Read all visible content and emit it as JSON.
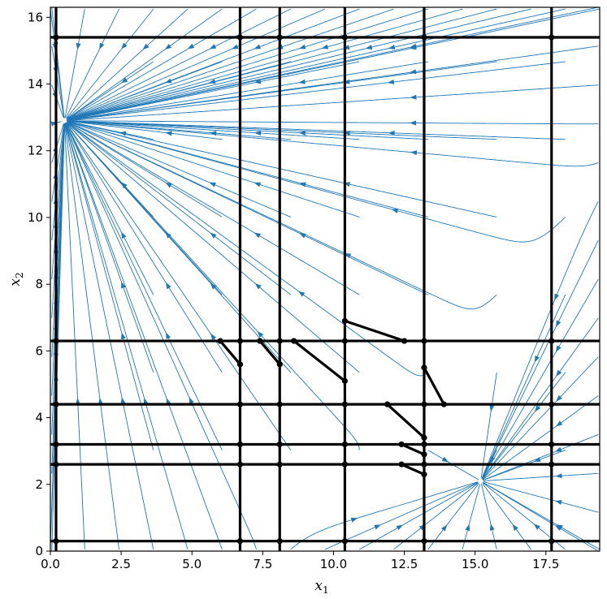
{
  "chart_data": {
    "type": "streamplot",
    "title": "",
    "xlabel": "x",
    "xlabel_sub": "1",
    "ylabel": "x",
    "ylabel_sub": "2",
    "xlim": [
      0,
      19.4
    ],
    "ylim": [
      0,
      16.3
    ],
    "x_ticks": [
      0,
      2.5,
      5,
      7.5,
      10,
      12.5,
      15,
      17.5
    ],
    "x_tick_labels": [
      "0.0",
      "2.5",
      "5.0",
      "7.5",
      "10.0",
      "12.5",
      "15.0",
      "17.5"
    ],
    "y_ticks": [
      0,
      2,
      4,
      6,
      8,
      10,
      12,
      14,
      16
    ],
    "y_tick_labels": [
      "0",
      "2",
      "4",
      "6",
      "8",
      "10",
      "12",
      "14",
      "16"
    ],
    "grid": false,
    "stream_color": "#1f77b4",
    "partition_color": "#000000",
    "attractors": [
      {
        "x": 0.5,
        "y": 12.9
      },
      {
        "x": 15.2,
        "y": 2.1
      }
    ],
    "saddle": {
      "x": 12.4,
      "y": 4.4
    },
    "vertical_lines": [
      0.2,
      6.7,
      8.1,
      10.4,
      13.2,
      17.7
    ],
    "horizontal_lines": [
      0.3,
      2.6,
      3.2,
      4.4,
      6.3,
      15.4
    ],
    "switching_segments": [
      [
        [
          6.0,
          6.3
        ],
        [
          6.7,
          5.6
        ]
      ],
      [
        [
          7.4,
          6.3
        ],
        [
          8.1,
          5.6
        ]
      ],
      [
        [
          8.6,
          6.3
        ],
        [
          10.4,
          5.1
        ]
      ],
      [
        [
          10.4,
          6.9
        ],
        [
          12.5,
          6.3
        ]
      ],
      [
        [
          11.9,
          4.4
        ],
        [
          13.2,
          3.4
        ]
      ],
      [
        [
          12.4,
          3.2
        ],
        [
          13.2,
          2.9
        ]
      ],
      [
        [
          12.4,
          2.6
        ],
        [
          13.2,
          2.3
        ]
      ],
      [
        [
          13.2,
          5.5
        ],
        [
          13.9,
          4.4
        ]
      ]
    ],
    "vertex_markers": [
      [
        0.2,
        0.3
      ],
      [
        6.7,
        0.3
      ],
      [
        8.1,
        0.3
      ],
      [
        10.4,
        0.3
      ],
      [
        13.2,
        0.3
      ],
      [
        17.7,
        0.3
      ],
      [
        0.2,
        2.6
      ],
      [
        6.7,
        2.6
      ],
      [
        8.1,
        2.6
      ],
      [
        10.4,
        2.6
      ],
      [
        13.2,
        2.6
      ],
      [
        17.7,
        2.6
      ],
      [
        0.2,
        3.2
      ],
      [
        6.7,
        3.2
      ],
      [
        8.1,
        3.2
      ],
      [
        10.4,
        3.2
      ],
      [
        13.2,
        3.2
      ],
      [
        17.7,
        3.2
      ],
      [
        0.2,
        4.4
      ],
      [
        6.7,
        4.4
      ],
      [
        8.1,
        4.4
      ],
      [
        10.4,
        4.4
      ],
      [
        13.2,
        4.4
      ],
      [
        17.7,
        4.4
      ],
      [
        0.2,
        6.3
      ],
      [
        6.7,
        6.3
      ],
      [
        8.1,
        6.3
      ],
      [
        10.4,
        6.3
      ],
      [
        13.2,
        6.3
      ],
      [
        17.7,
        6.3
      ],
      [
        0.2,
        15.4
      ],
      [
        6.7,
        15.4
      ],
      [
        8.1,
        15.4
      ],
      [
        10.4,
        15.4
      ],
      [
        13.2,
        15.4
      ],
      [
        17.7,
        15.4
      ]
    ]
  }
}
